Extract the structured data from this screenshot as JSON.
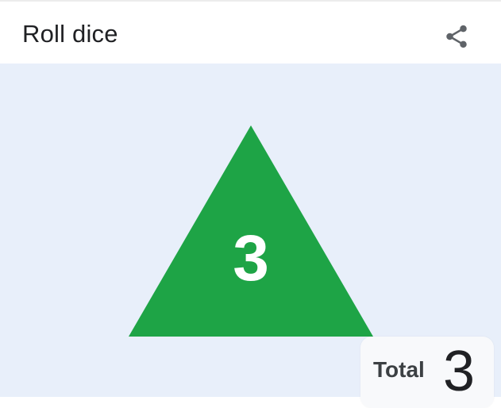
{
  "header": {
    "title": "Roll dice",
    "share_icon": "share-icon"
  },
  "die": {
    "shape": "d4-triangle",
    "color": "#1ea446",
    "value": "3"
  },
  "total": {
    "label": "Total",
    "value": "3"
  },
  "colors": {
    "stage_background": "#e8effa",
    "header_background": "#ffffff",
    "title_text": "#202124",
    "icon_gray": "#5f6368"
  }
}
